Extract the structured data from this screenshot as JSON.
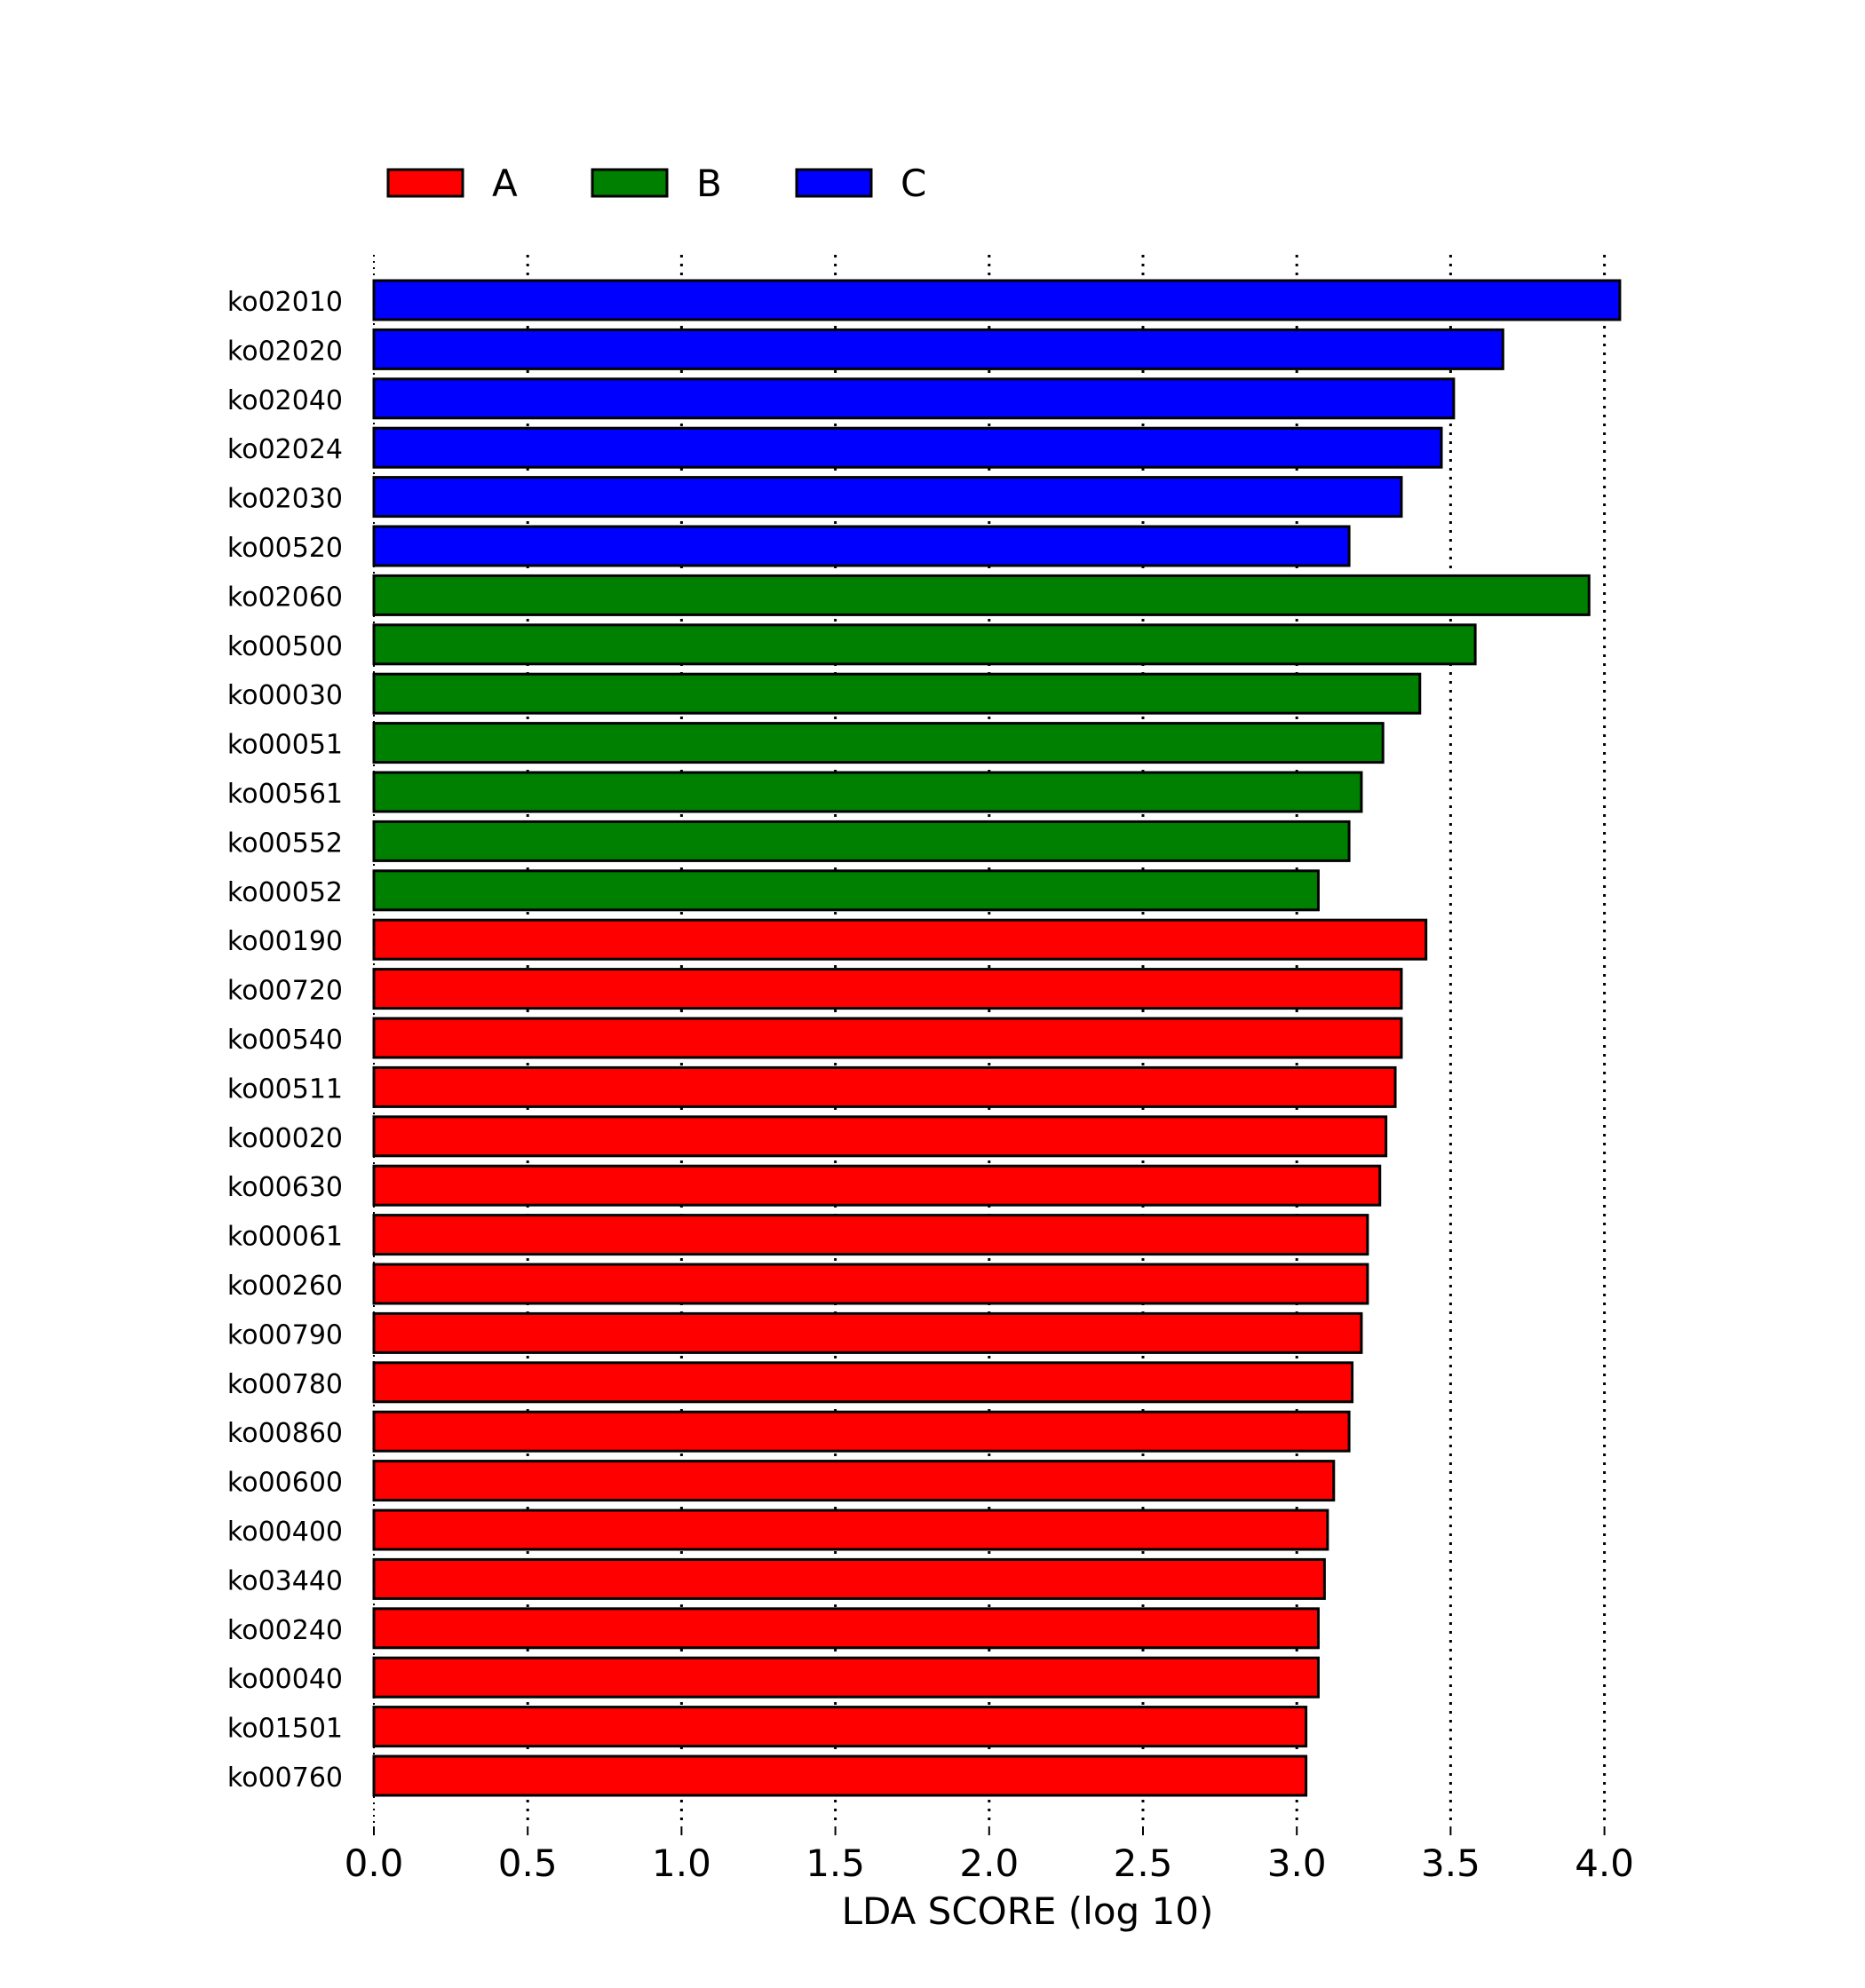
{
  "chart_data": {
    "type": "bar",
    "orientation": "horizontal",
    "xlabel": "LDA SCORE (log 10)",
    "xlim": [
      0,
      4.05
    ],
    "xticks": [
      "0.0",
      "0.5",
      "1.0",
      "1.5",
      "2.0",
      "2.5",
      "3.0",
      "3.5",
      "4.0"
    ],
    "grid": "vertical dotted",
    "legend": {
      "placement": "top-left",
      "entries": [
        {
          "group": "A",
          "label": "A",
          "color": "#ff0000"
        },
        {
          "group": "B",
          "label": "B",
          "color": "#008000"
        },
        {
          "group": "C",
          "label": "C",
          "color": "#0000ff"
        }
      ]
    },
    "bars": [
      {
        "label": "ko02010",
        "value": 4.05,
        "group": "C"
      },
      {
        "label": "ko02020",
        "value": 3.67,
        "group": "C"
      },
      {
        "label": "ko02040",
        "value": 3.51,
        "group": "C"
      },
      {
        "label": "ko02024",
        "value": 3.47,
        "group": "C"
      },
      {
        "label": "ko02030",
        "value": 3.34,
        "group": "C"
      },
      {
        "label": "ko00520",
        "value": 3.17,
        "group": "C"
      },
      {
        "label": "ko02060",
        "value": 3.95,
        "group": "B"
      },
      {
        "label": "ko00500",
        "value": 3.58,
        "group": "B"
      },
      {
        "label": "ko00030",
        "value": 3.4,
        "group": "B"
      },
      {
        "label": "ko00051",
        "value": 3.28,
        "group": "B"
      },
      {
        "label": "ko00561",
        "value": 3.21,
        "group": "B"
      },
      {
        "label": "ko00552",
        "value": 3.17,
        "group": "B"
      },
      {
        "label": "ko00052",
        "value": 3.07,
        "group": "B"
      },
      {
        "label": "ko00190",
        "value": 3.42,
        "group": "A"
      },
      {
        "label": "ko00720",
        "value": 3.34,
        "group": "A"
      },
      {
        "label": "ko00540",
        "value": 3.34,
        "group": "A"
      },
      {
        "label": "ko00511",
        "value": 3.32,
        "group": "A"
      },
      {
        "label": "ko00020",
        "value": 3.29,
        "group": "A"
      },
      {
        "label": "ko00630",
        "value": 3.27,
        "group": "A"
      },
      {
        "label": "ko00061",
        "value": 3.23,
        "group": "A"
      },
      {
        "label": "ko00260",
        "value": 3.23,
        "group": "A"
      },
      {
        "label": "ko00790",
        "value": 3.21,
        "group": "A"
      },
      {
        "label": "ko00780",
        "value": 3.18,
        "group": "A"
      },
      {
        "label": "ko00860",
        "value": 3.17,
        "group": "A"
      },
      {
        "label": "ko00600",
        "value": 3.12,
        "group": "A"
      },
      {
        "label": "ko00400",
        "value": 3.1,
        "group": "A"
      },
      {
        "label": "ko03440",
        "value": 3.09,
        "group": "A"
      },
      {
        "label": "ko00240",
        "value": 3.07,
        "group": "A"
      },
      {
        "label": "ko00040",
        "value": 3.07,
        "group": "A"
      },
      {
        "label": "ko01501",
        "value": 3.03,
        "group": "A"
      },
      {
        "label": "ko00760",
        "value": 3.03,
        "group": "A"
      }
    ]
  }
}
